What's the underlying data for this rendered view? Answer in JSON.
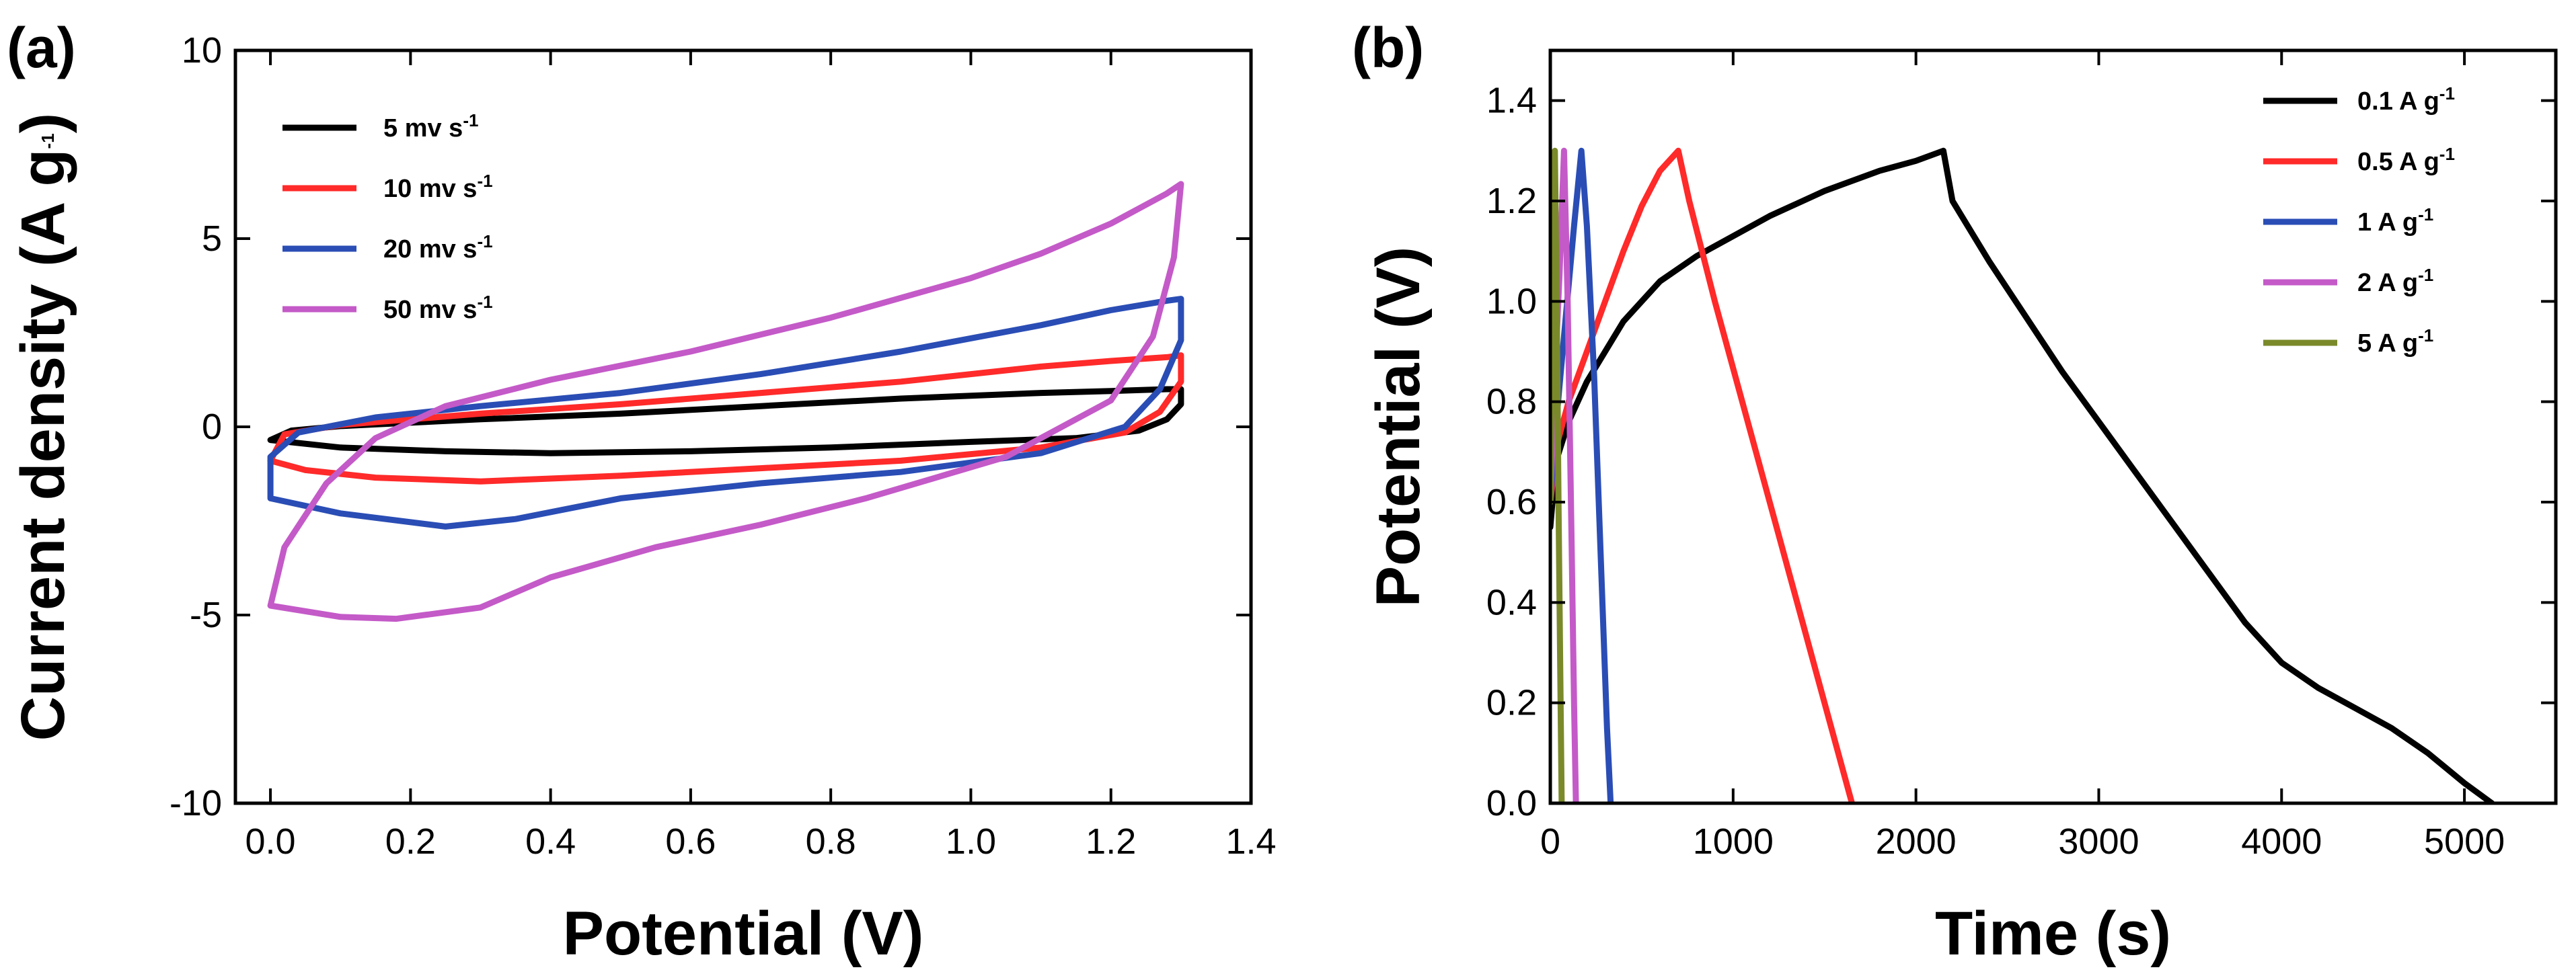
{
  "chart_data": [
    {
      "type": "line",
      "panel_label": "(a)",
      "title": "",
      "xlabel": "Potential (V)",
      "ylabel": "Current density (A g",
      "ylabel_sup": "-1",
      "ylabel_end": ")",
      "xlim": [
        -0.05,
        1.4
      ],
      "ylim": [
        -10,
        10
      ],
      "xticks": [
        0.0,
        0.2,
        0.4,
        0.6,
        0.8,
        1.0,
        1.2,
        1.4
      ],
      "xtick_labels": [
        "0.0",
        "0.2",
        "0.4",
        "0.6",
        "0.8",
        "1.0",
        "1.2",
        "1.4"
      ],
      "yticks": [
        -10,
        -5,
        0,
        5,
        10
      ],
      "ytick_labels": [
        "-10",
        "-5",
        "0",
        "5",
        "10"
      ],
      "legend_position": "top-left",
      "series": [
        {
          "name": "5 mv s",
          "name_sup": "-1",
          "color": "#000000",
          "points": [
            [
              0.0,
              -0.35
            ],
            [
              0.03,
              -0.1
            ],
            [
              0.1,
              0.02
            ],
            [
              0.3,
              0.2
            ],
            [
              0.5,
              0.35
            ],
            [
              0.7,
              0.55
            ],
            [
              0.9,
              0.75
            ],
            [
              1.1,
              0.9
            ],
            [
              1.2,
              0.95
            ],
            [
              1.28,
              1.0
            ],
            [
              1.3,
              1.0
            ],
            [
              1.3,
              0.6
            ],
            [
              1.28,
              0.2
            ],
            [
              1.24,
              -0.1
            ],
            [
              1.15,
              -0.3
            ],
            [
              1.0,
              -0.4
            ],
            [
              0.8,
              -0.55
            ],
            [
              0.6,
              -0.65
            ],
            [
              0.4,
              -0.7
            ],
            [
              0.25,
              -0.65
            ],
            [
              0.1,
              -0.55
            ],
            [
              0.0,
              -0.35
            ]
          ]
        },
        {
          "name": "10 mv s",
          "name_sup": "-1",
          "color": "#ff2a2a",
          "points": [
            [
              0.0,
              -0.9
            ],
            [
              0.02,
              -0.2
            ],
            [
              0.1,
              0.05
            ],
            [
              0.3,
              0.35
            ],
            [
              0.5,
              0.6
            ],
            [
              0.7,
              0.9
            ],
            [
              0.9,
              1.2
            ],
            [
              1.1,
              1.6
            ],
            [
              1.2,
              1.75
            ],
            [
              1.28,
              1.85
            ],
            [
              1.3,
              1.9
            ],
            [
              1.3,
              1.2
            ],
            [
              1.27,
              0.4
            ],
            [
              1.22,
              -0.15
            ],
            [
              1.1,
              -0.55
            ],
            [
              0.9,
              -0.9
            ],
            [
              0.7,
              -1.1
            ],
            [
              0.5,
              -1.3
            ],
            [
              0.3,
              -1.45
            ],
            [
              0.15,
              -1.35
            ],
            [
              0.05,
              -1.15
            ],
            [
              0.0,
              -0.9
            ]
          ]
        },
        {
          "name": "20 mv s",
          "name_sup": "-1",
          "color": "#2a4db5",
          "points": [
            [
              0.0,
              -1.9
            ],
            [
              0.0,
              -0.8
            ],
            [
              0.04,
              -0.15
            ],
            [
              0.15,
              0.25
            ],
            [
              0.3,
              0.55
            ],
            [
              0.5,
              0.9
            ],
            [
              0.7,
              1.4
            ],
            [
              0.9,
              2.0
            ],
            [
              1.1,
              2.7
            ],
            [
              1.2,
              3.1
            ],
            [
              1.28,
              3.35
            ],
            [
              1.3,
              3.4
            ],
            [
              1.3,
              2.3
            ],
            [
              1.27,
              1.0
            ],
            [
              1.22,
              0.0
            ],
            [
              1.1,
              -0.7
            ],
            [
              0.9,
              -1.2
            ],
            [
              0.7,
              -1.5
            ],
            [
              0.5,
              -1.9
            ],
            [
              0.35,
              -2.45
            ],
            [
              0.25,
              -2.65
            ],
            [
              0.1,
              -2.3
            ],
            [
              0.0,
              -1.9
            ]
          ]
        },
        {
          "name": "50 mv s",
          "name_sup": "-1",
          "color": "#c45ac8",
          "points": [
            [
              0.0,
              -4.75
            ],
            [
              0.02,
              -3.2
            ],
            [
              0.08,
              -1.5
            ],
            [
              0.15,
              -0.3
            ],
            [
              0.25,
              0.55
            ],
            [
              0.4,
              1.25
            ],
            [
              0.6,
              2.0
            ],
            [
              0.8,
              2.9
            ],
            [
              1.0,
              3.95
            ],
            [
              1.1,
              4.6
            ],
            [
              1.2,
              5.4
            ],
            [
              1.28,
              6.2
            ],
            [
              1.3,
              6.45
            ],
            [
              1.29,
              4.5
            ],
            [
              1.26,
              2.4
            ],
            [
              1.2,
              0.7
            ],
            [
              1.05,
              -0.8
            ],
            [
              0.85,
              -1.9
            ],
            [
              0.7,
              -2.6
            ],
            [
              0.55,
              -3.2
            ],
            [
              0.4,
              -4.0
            ],
            [
              0.3,
              -4.8
            ],
            [
              0.18,
              -5.1
            ],
            [
              0.1,
              -5.05
            ],
            [
              0.0,
              -4.75
            ]
          ]
        }
      ]
    },
    {
      "type": "line",
      "panel_label": "(b)",
      "title": "",
      "xlabel": "Time (s)",
      "ylabel": "Potential (V)",
      "xlim": [
        0,
        5500
      ],
      "ylim": [
        0,
        1.5
      ],
      "xticks": [
        0,
        1000,
        2000,
        3000,
        4000,
        5000
      ],
      "xtick_labels": [
        "0",
        "1000",
        "2000",
        "3000",
        "4000",
        "5000"
      ],
      "yticks": [
        0.0,
        0.2,
        0.4,
        0.6,
        0.8,
        1.0,
        1.2,
        1.4
      ],
      "ytick_labels": [
        "0.0",
        "0.2",
        "0.4",
        "0.6",
        "0.8",
        "1.0",
        "1.2",
        "1.4"
      ],
      "legend_position": "top-right",
      "series": [
        {
          "name": "0.1 A g",
          "name_sup": "-1",
          "color": "#000000",
          "points": [
            [
              0,
              0.55
            ],
            [
              30,
              0.68
            ],
            [
              100,
              0.76
            ],
            [
              200,
              0.84
            ],
            [
              400,
              0.96
            ],
            [
              600,
              1.04
            ],
            [
              800,
              1.09
            ],
            [
              1000,
              1.13
            ],
            [
              1200,
              1.17
            ],
            [
              1500,
              1.22
            ],
            [
              1800,
              1.26
            ],
            [
              2000,
              1.28
            ],
            [
              2150,
              1.3
            ],
            [
              2200,
              1.2
            ],
            [
              2400,
              1.08
            ],
            [
              2600,
              0.97
            ],
            [
              2800,
              0.86
            ],
            [
              3000,
              0.76
            ],
            [
              3200,
              0.66
            ],
            [
              3400,
              0.56
            ],
            [
              3600,
              0.46
            ],
            [
              3800,
              0.36
            ],
            [
              4000,
              0.28
            ],
            [
              4200,
              0.23
            ],
            [
              4400,
              0.19
            ],
            [
              4600,
              0.15
            ],
            [
              4800,
              0.1
            ],
            [
              5000,
              0.04
            ],
            [
              5150,
              0.0
            ]
          ]
        },
        {
          "name": "0.5 A g",
          "name_sup": "-1",
          "color": "#ff2a2a",
          "points": [
            [
              0,
              0.6
            ],
            [
              40,
              0.72
            ],
            [
              100,
              0.8
            ],
            [
              200,
              0.9
            ],
            [
              300,
              1.0
            ],
            [
              400,
              1.1
            ],
            [
              500,
              1.19
            ],
            [
              600,
              1.26
            ],
            [
              700,
              1.3
            ],
            [
              760,
              1.2
            ],
            [
              900,
              1.0
            ],
            [
              1050,
              0.8
            ],
            [
              1200,
              0.6
            ],
            [
              1350,
              0.4
            ],
            [
              1500,
              0.2
            ],
            [
              1620,
              0.04
            ],
            [
              1650,
              0.0
            ]
          ]
        },
        {
          "name": "1 A g",
          "name_sup": "-1",
          "color": "#2a4db5",
          "points": [
            [
              0,
              0.6
            ],
            [
              30,
              0.75
            ],
            [
              80,
              0.95
            ],
            [
              130,
              1.15
            ],
            [
              170,
              1.3
            ],
            [
              200,
              1.15
            ],
            [
              240,
              0.85
            ],
            [
              280,
              0.45
            ],
            [
              310,
              0.15
            ],
            [
              330,
              0.0
            ]
          ]
        },
        {
          "name": "2 A g",
          "name_sup": "-1",
          "color": "#c45ac8",
          "points": [
            [
              0,
              0.6
            ],
            [
              25,
              0.85
            ],
            [
              50,
              1.05
            ],
            [
              75,
              1.3
            ],
            [
              95,
              1.0
            ],
            [
              115,
              0.55
            ],
            [
              130,
              0.2
            ],
            [
              140,
              0.0
            ]
          ]
        },
        {
          "name": "5 A g",
          "name_sup": "-1",
          "color": "#7a8a2a",
          "points": [
            [
              0,
              0.6
            ],
            [
              12,
              0.9
            ],
            [
              25,
              1.3
            ],
            [
              35,
              1.0
            ],
            [
              45,
              0.6
            ],
            [
              55,
              0.25
            ],
            [
              62,
              0.0
            ]
          ]
        }
      ]
    }
  ]
}
